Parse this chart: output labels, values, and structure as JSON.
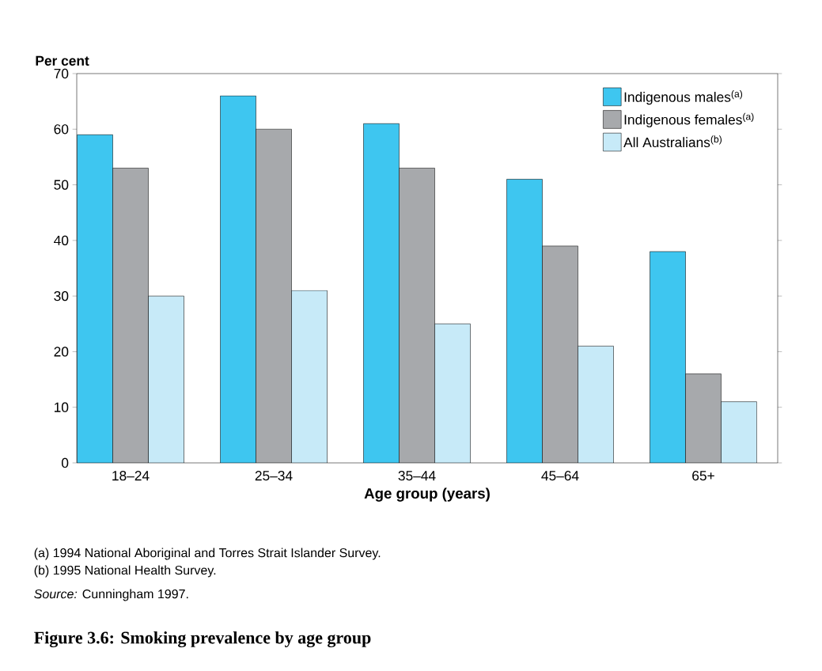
{
  "chart_data": {
    "type": "bar",
    "title": "Figure 3.6: Smoking prevalence by age group",
    "ylabel": "Per cent",
    "xlabel": "Age group (years)",
    "categories": [
      "18–24",
      "25–34",
      "35–44",
      "45–64",
      "65+"
    ],
    "series": [
      {
        "name": "Indigenous males$^{(a)}$",
        "color": "#3ec6f0",
        "values": [
          59,
          66,
          61,
          51,
          38
        ]
      },
      {
        "name": "Indigenous females$^{(a)}$",
        "color": "#a7a9ac",
        "values": [
          53,
          60,
          53,
          39,
          16
        ]
      },
      {
        "name": "All Australians$^{(b)}$",
        "color": "#c7eaf8",
        "values": [
          30,
          31,
          25,
          21,
          11
        ]
      }
    ],
    "ylim": [
      0,
      70
    ],
    "yticks": [
      0,
      10,
      20,
      30,
      40,
      50,
      60,
      70
    ],
    "grid": false,
    "legend": "top right",
    "annotations": [
      "(a)    1994 National Aboriginal and Torres Strait Islander Survey.",
      "(b)    1995 National Health Survey.",
      "*Source:* Cunningham 1997."
    ]
  }
}
